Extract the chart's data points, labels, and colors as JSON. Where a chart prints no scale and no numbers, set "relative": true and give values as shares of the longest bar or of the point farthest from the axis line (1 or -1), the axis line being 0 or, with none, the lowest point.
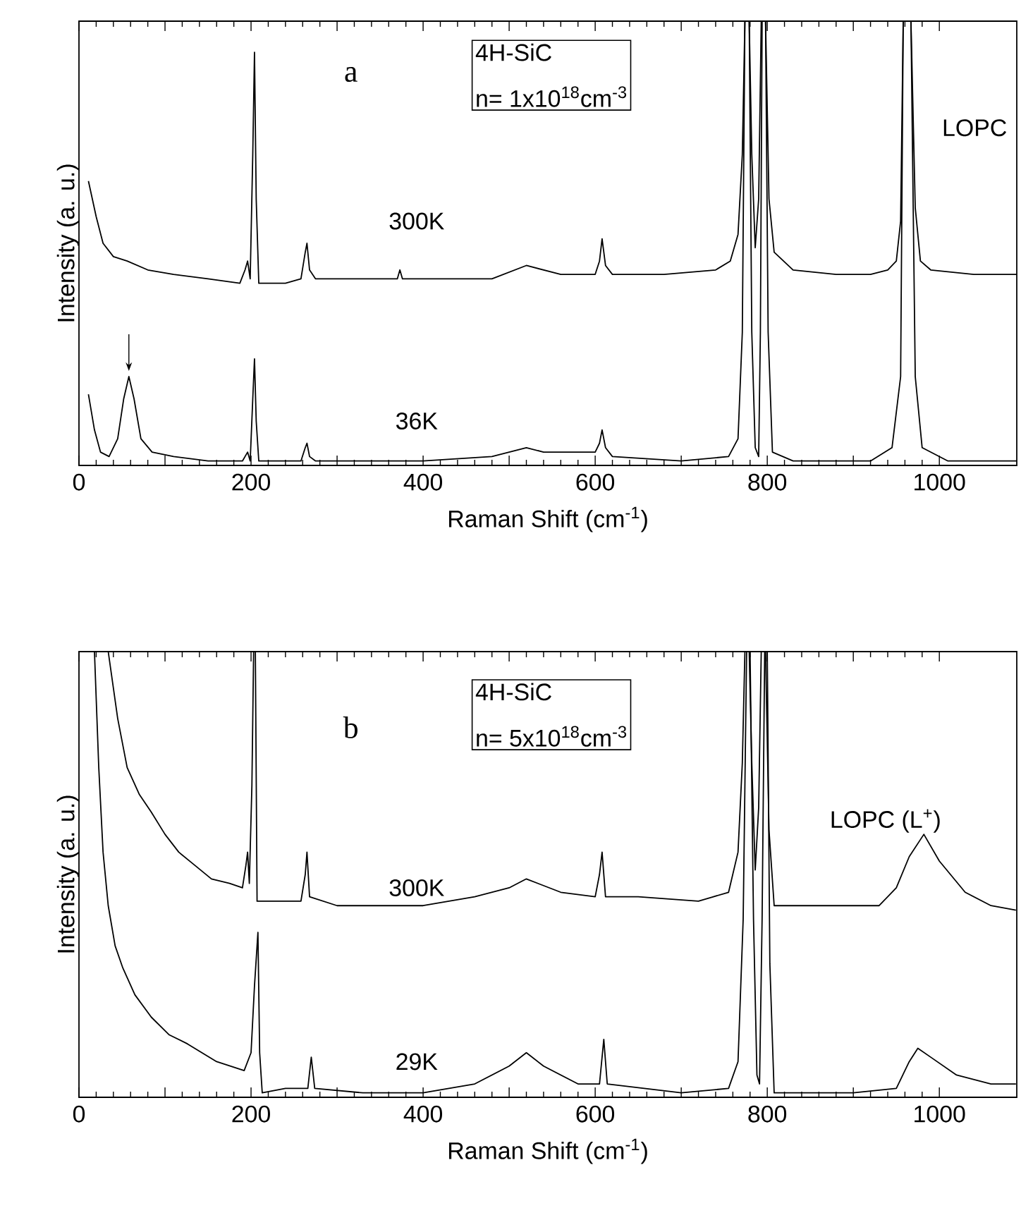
{
  "chart_data": [
    {
      "type": "line",
      "relative": true,
      "xlabel": "Raman Shift (cm$^{-1}$)",
      "ylabel": "Intensity (a. u.)",
      "xlim": [
        0,
        1090
      ],
      "xticks": [
        0,
        {
          "value": 100,
          "label": null
        },
        200,
        {
          "value": 300,
          "label": null
        },
        400,
        {
          "value": 500,
          "label": null
        },
        600,
        {
          "value": 700,
          "label": null
        },
        800,
        {
          "value": 900,
          "label": null
        },
        1000
      ],
      "annotations": [
        "a",
        "4H-SiC",
        "n= 1x10$^{18}$cm$^{-3}$",
        "LOPC"
      ],
      "series": [
        {
          "name": "300K",
          "color": "#000000",
          "x": [
            11,
            20,
            28,
            40,
            56,
            80,
            110,
            150,
            187,
            193,
            196,
            199,
            202,
            204,
            206,
            209,
            240,
            258,
            263,
            265,
            268,
            275,
            320,
            370,
            373,
            376,
            420,
            480,
            520,
            560,
            600,
            605,
            608,
            612,
            620,
            680,
            740,
            757,
            766,
            771,
            774,
            779,
            782,
            786,
            790,
            793,
            798,
            802,
            808,
            830,
            880,
            920,
            940,
            950,
            955,
            958,
            967,
            972,
            978,
            990,
            1040,
            1090
          ],
          "values": [
            0.64,
            0.56,
            0.5,
            0.47,
            0.46,
            0.44,
            0.43,
            0.42,
            0.41,
            0.44,
            0.46,
            0.42,
            0.7,
            0.93,
            0.6,
            0.41,
            0.41,
            0.42,
            0.48,
            0.5,
            0.44,
            0.42,
            0.42,
            0.42,
            0.44,
            0.42,
            0.42,
            0.42,
            0.45,
            0.43,
            0.43,
            0.46,
            0.51,
            0.45,
            0.43,
            0.43,
            0.44,
            0.46,
            0.52,
            0.7,
            1,
            1,
            0.7,
            0.49,
            0.6,
            1,
            1,
            0.6,
            0.48,
            0.44,
            0.43,
            0.43,
            0.44,
            0.46,
            0.55,
            1,
            1,
            0.58,
            0.46,
            0.44,
            0.43,
            0.43
          ]
        },
        {
          "name": "36K",
          "color": "#000000",
          "x": [
            11,
            18,
            25,
            35,
            45,
            52,
            58,
            64,
            72,
            85,
            110,
            150,
            190,
            196,
            199,
            202,
            204,
            206,
            209,
            258,
            263,
            265,
            268,
            275,
            400,
            480,
            520,
            540,
            580,
            600,
            605,
            608,
            612,
            620,
            700,
            755,
            766,
            771,
            774,
            779,
            782,
            786,
            790,
            792,
            794,
            798,
            801,
            806,
            830,
            920,
            945,
            955,
            958,
            967,
            972,
            980,
            1010,
            1090
          ],
          "values": [
            0.16,
            0.08,
            0.03,
            0.02,
            0.06,
            0.15,
            0.2,
            0.15,
            0.06,
            0.03,
            0.02,
            0.01,
            0.01,
            0.03,
            0.01,
            0.15,
            0.24,
            0.1,
            0.01,
            0.01,
            0.04,
            0.05,
            0.02,
            0.01,
            0.01,
            0.02,
            0.04,
            0.03,
            0.03,
            0.03,
            0.05,
            0.08,
            0.04,
            0.02,
            0.01,
            0.02,
            0.06,
            0.3,
            1,
            1,
            0.3,
            0.04,
            0.02,
            0.3,
            1,
            1,
            0.3,
            0.03,
            0.01,
            0.01,
            0.04,
            0.2,
            1,
            1,
            0.2,
            0.04,
            0.01,
            0.01
          ]
        }
      ]
    },
    {
      "type": "line",
      "relative": true,
      "xlabel": "Raman Shift (cm$^{-1}$)",
      "ylabel": "Intensity (a. u.)",
      "xlim": [
        0,
        1090
      ],
      "xticks": [
        0,
        {
          "value": 100,
          "label": null
        },
        200,
        {
          "value": 300,
          "label": null
        },
        400,
        {
          "value": 500,
          "label": null
        },
        600,
        {
          "value": 700,
          "label": null
        },
        800,
        {
          "value": 900,
          "label": null
        },
        1000
      ],
      "annotations": [
        "b",
        "4H-SiC",
        "n= 5x10$^{18}$cm$^{-3}$",
        "LOPC (L$^{+}$)"
      ],
      "series": [
        {
          "name": "300K",
          "color": "#000000",
          "x": [
            34,
            45,
            56,
            70,
            84,
            100,
            116,
            135,
            154,
            175,
            190,
            194,
            196,
            198,
            201,
            203,
            205,
            207,
            230,
            258,
            263,
            265,
            268,
            300,
            400,
            460,
            500,
            520,
            560,
            600,
            605,
            608,
            612,
            650,
            720,
            755,
            766,
            771,
            774,
            779,
            782,
            786,
            790,
            793,
            798,
            802,
            808,
            870,
            930,
            950,
            965,
            982,
            1000,
            1030,
            1060,
            1089
          ],
          "values": [
            1,
            0.85,
            0.74,
            0.68,
            0.64,
            0.59,
            0.55,
            0.52,
            0.49,
            0.48,
            0.47,
            0.52,
            0.55,
            0.48,
            0.7,
            1,
            1,
            0.44,
            0.44,
            0.44,
            0.5,
            0.55,
            0.45,
            0.43,
            0.43,
            0.45,
            0.47,
            0.49,
            0.46,
            0.45,
            0.5,
            0.55,
            0.45,
            0.45,
            0.44,
            0.46,
            0.55,
            0.75,
            1,
            1,
            0.75,
            0.51,
            0.65,
            1,
            1,
            0.6,
            0.43,
            0.43,
            0.43,
            0.47,
            0.54,
            0.59,
            0.53,
            0.46,
            0.43,
            0.42
          ]
        },
        {
          "name": "29K",
          "color": "#000000",
          "x": [
            18,
            23,
            28,
            34,
            42,
            51,
            65,
            84,
            105,
            126,
            160,
            192,
            200,
            204,
            208,
            210,
            213,
            240,
            266,
            270,
            274,
            330,
            400,
            460,
            500,
            520,
            540,
            580,
            605,
            610,
            614,
            700,
            755,
            766,
            772,
            776,
            780,
            784,
            788,
            791,
            794,
            797,
            800,
            803,
            808,
            900,
            950,
            965,
            975,
            990,
            1020,
            1060,
            1089
          ],
          "values": [
            1,
            0.74,
            0.55,
            0.43,
            0.34,
            0.29,
            0.23,
            0.18,
            0.14,
            0.12,
            0.08,
            0.06,
            0.1,
            0.25,
            0.37,
            0.1,
            0.01,
            0.02,
            0.02,
            0.09,
            0.02,
            0.01,
            0.01,
            0.03,
            0.07,
            0.1,
            0.07,
            0.03,
            0.03,
            0.13,
            0.03,
            0.01,
            0.02,
            0.08,
            0.4,
            1,
            1,
            0.4,
            0.05,
            0.03,
            0.4,
            1,
            1,
            0.3,
            0.01,
            0.01,
            0.02,
            0.08,
            0.11,
            0.09,
            0.05,
            0.03,
            0.03
          ]
        }
      ]
    }
  ]
}
